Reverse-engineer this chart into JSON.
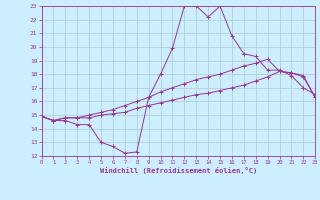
{
  "xlabel": "Windchill (Refroidissement éolien,°C)",
  "xlim": [
    0,
    23
  ],
  "ylim": [
    12,
    23
  ],
  "xticks": [
    0,
    1,
    2,
    3,
    4,
    5,
    6,
    7,
    8,
    9,
    10,
    11,
    12,
    13,
    14,
    15,
    16,
    17,
    18,
    19,
    20,
    21,
    22,
    23
  ],
  "yticks": [
    12,
    13,
    14,
    15,
    16,
    17,
    18,
    19,
    20,
    21,
    22,
    23
  ],
  "bg_color": "#cceeff",
  "grid_color": "#aacccc",
  "line_color": "#993399",
  "series": [
    [
      14.9,
      14.6,
      14.6,
      14.3,
      14.3,
      13.0,
      12.7,
      12.2,
      12.3,
      16.3,
      18.0,
      19.9,
      23.0,
      23.0,
      22.2,
      23.0,
      20.8,
      19.5,
      19.3,
      18.3,
      18.3,
      17.9,
      17.0,
      16.5
    ],
    [
      14.9,
      14.6,
      14.8,
      14.8,
      14.8,
      15.0,
      15.1,
      15.2,
      15.5,
      15.7,
      15.9,
      16.1,
      16.3,
      16.5,
      16.6,
      16.8,
      17.0,
      17.2,
      17.5,
      17.8,
      18.2,
      18.1,
      17.9,
      16.3
    ],
    [
      14.9,
      14.6,
      14.8,
      14.8,
      15.0,
      15.2,
      15.4,
      15.7,
      16.0,
      16.3,
      16.7,
      17.0,
      17.3,
      17.6,
      17.8,
      18.0,
      18.3,
      18.6,
      18.8,
      19.1,
      18.2,
      18.1,
      17.8,
      16.3
    ]
  ]
}
